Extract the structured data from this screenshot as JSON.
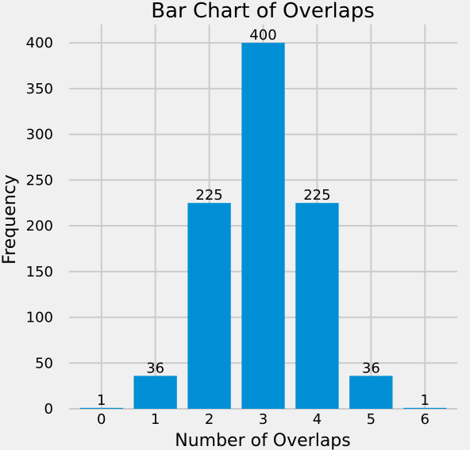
{
  "chart_data": {
    "type": "bar",
    "title": "Bar Chart of Overlaps",
    "xlabel": "Number of Overlaps",
    "ylabel": "Frequency",
    "categories": [
      "0",
      "1",
      "2",
      "3",
      "4",
      "5",
      "6"
    ],
    "values": [
      1,
      36,
      225,
      400,
      225,
      36,
      1
    ],
    "data_labels": [
      "1",
      "36",
      "225",
      "400",
      "225",
      "36",
      "1"
    ],
    "ylim": [
      0,
      420
    ],
    "xlim": [
      -0.6,
      6.6
    ],
    "yticks": [
      0,
      50,
      100,
      150,
      200,
      250,
      300,
      350,
      400
    ],
    "ytick_labels": [
      "0",
      "50",
      "100",
      "150",
      "200",
      "250",
      "300",
      "350",
      "400"
    ],
    "grid": true,
    "bar_color": "#008fd5",
    "background_color": "#f0f0f0"
  }
}
